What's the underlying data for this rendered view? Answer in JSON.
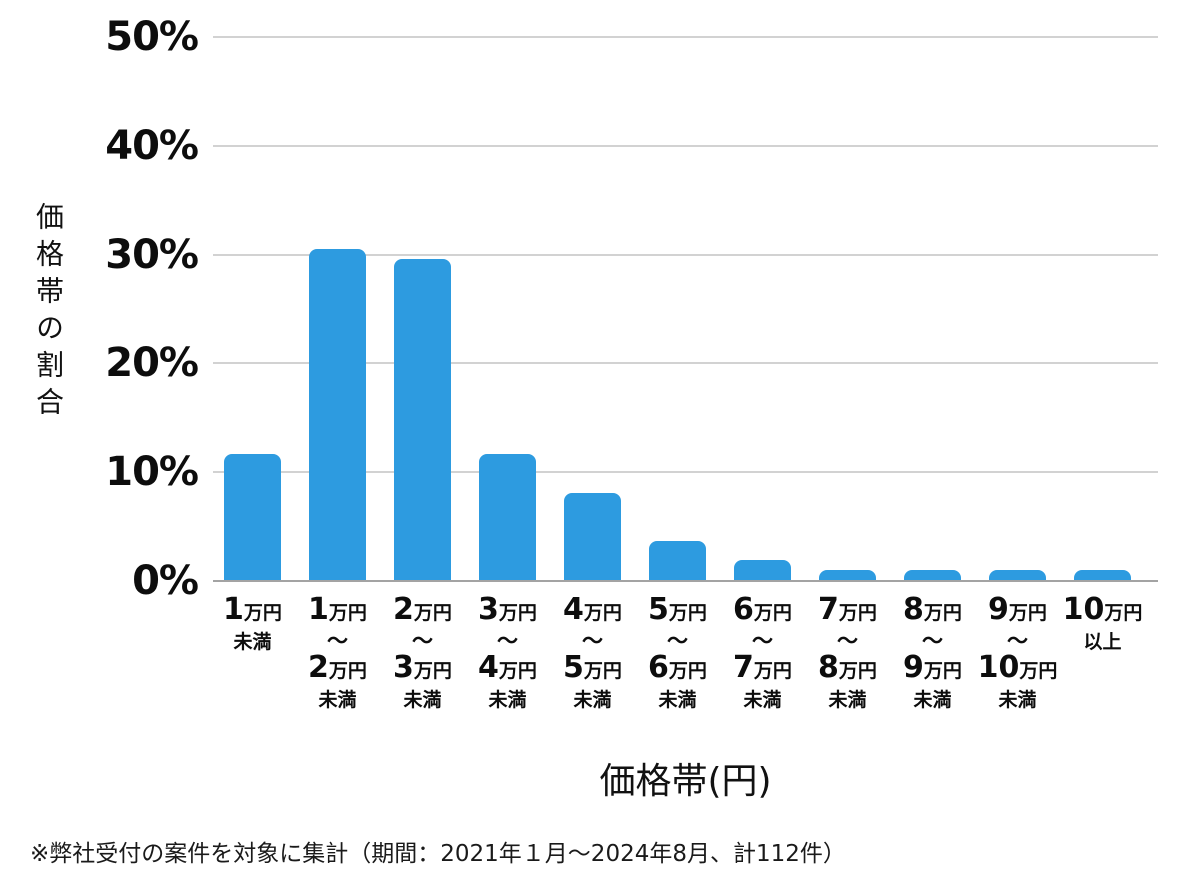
{
  "chart_data": {
    "type": "bar",
    "title": "",
    "xlabel": "価格帯(円)",
    "ylabel": "価格帯の割合",
    "ylim": [
      0,
      50
    ],
    "ytick_step": 10,
    "ytick_suffix": "%",
    "grid": true,
    "legend": false,
    "bar_color": "#2d9be0",
    "grid_color": "#d2d2d2",
    "axis_color": "#a3a3a3",
    "text_color": "#0d0d0d",
    "categories": [
      [
        "1万円",
        "未満"
      ],
      [
        "1万円",
        "～",
        "2万円",
        "未満"
      ],
      [
        "2万円",
        "～",
        "3万円",
        "未満"
      ],
      [
        "3万円",
        "～",
        "4万円",
        "未満"
      ],
      [
        "4万円",
        "～",
        "5万円",
        "未満"
      ],
      [
        "5万円",
        "～",
        "6万円",
        "未満"
      ],
      [
        "6万円",
        "～",
        "7万円",
        "未満"
      ],
      [
        "7万円",
        "～",
        "8万円",
        "未満"
      ],
      [
        "8万円",
        "～",
        "9万円",
        "未満"
      ],
      [
        "9万円",
        "～",
        "10万円",
        "未満"
      ],
      [
        "10万円",
        "以上"
      ]
    ],
    "values": [
      11.6,
      30.4,
      29.5,
      11.6,
      8.0,
      3.6,
      1.8,
      0.9,
      0.9,
      0.9,
      0.9
    ]
  },
  "footnote": "※弊社受付の案件を対象に集計（期間：2021年１月～2024年8月、計112件）"
}
